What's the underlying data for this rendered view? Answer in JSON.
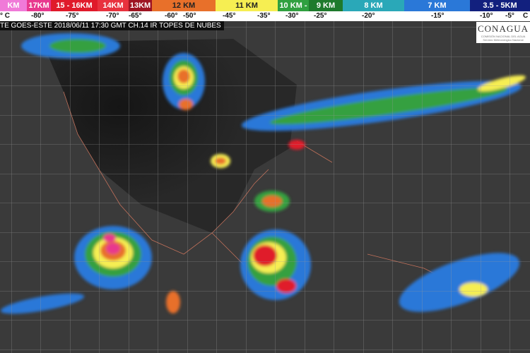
{
  "legend": {
    "segments": [
      {
        "label": "KM",
        "color": "#f07ad8"
      },
      {
        "label": "17KM",
        "color": "#e8388e"
      },
      {
        "label": "15 - 16KM",
        "color": "#e01a2a"
      },
      {
        "label": "14KM",
        "color": "#e8323e"
      },
      {
        "label": "13KM",
        "color": "#9e1422"
      },
      {
        "label": "12 KM",
        "color": "#e8702a"
      },
      {
        "label": "11 KM",
        "color": "#f6ee52"
      },
      {
        "label": "10 KM -",
        "color": "#30a040"
      },
      {
        "label": "9 KM",
        "color": "#1e7a2c"
      },
      {
        "label": "8 KM",
        "color": "#2aa8b8"
      },
      {
        "label": "7 KM",
        "color": "#2a78d8"
      },
      {
        "label": "3.5 - 5KM",
        "color": "#12207e"
      }
    ],
    "temperatures": [
      "° C",
      "-80°",
      "-75°",
      "-70°",
      "-65°",
      "-60°",
      "-50°",
      "-45°",
      "-35°",
      "-30°",
      "-25°",
      "-20°",
      "-15°",
      "-10°",
      "-5°",
      "C"
    ]
  },
  "title": "TE GOES-ESTE 2018/06/11 17:30 GMT CH.14 IR TOPES DE NUBES",
  "logo": {
    "name": "CONAGUA",
    "subtitle": "COMISIÓN NACIONAL DEL AGUA",
    "subtitle2": "Servicio Meteorológico Nacional"
  }
}
